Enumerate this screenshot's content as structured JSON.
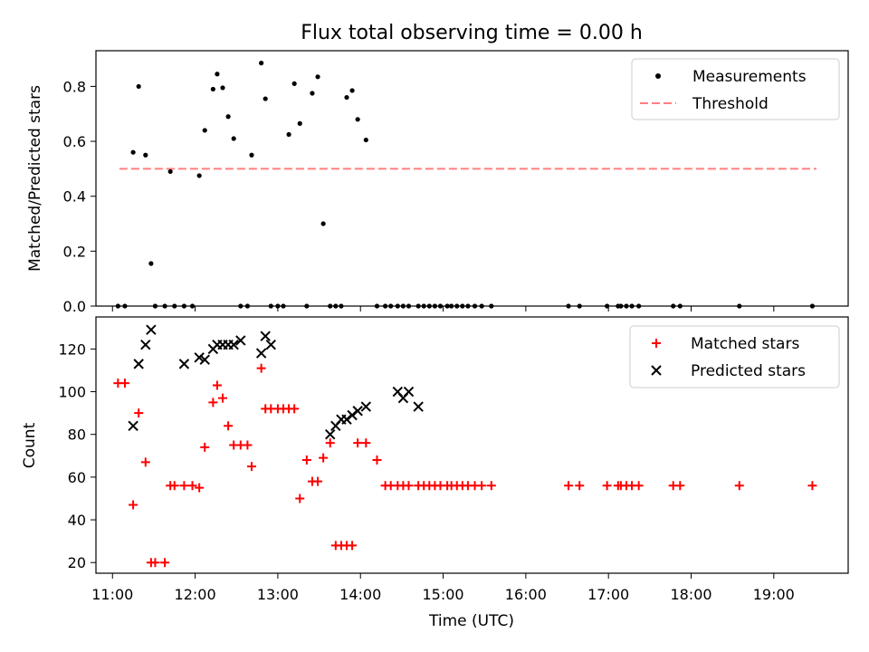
{
  "title": "Flux total observing time = 0.00 h",
  "colors": {
    "measurement": "#000000",
    "threshold": "#ff7f7f",
    "matched": "#ff0000",
    "predicted": "#000000"
  },
  "chart_data": [
    {
      "type": "scatter",
      "ylabel": "Matched/Predicted stars",
      "xlim": [
        "10:48",
        "19:54"
      ],
      "ylim": [
        0,
        0.93
      ],
      "yticks": [
        "0.0",
        "0.2",
        "0.4",
        "0.6",
        "0.8"
      ],
      "grid": false,
      "legend_position": "top-right",
      "legend": [
        "Measurements",
        "Threshold"
      ],
      "threshold": {
        "value": 0.5,
        "x_start": "11:05",
        "x_end": "19:31"
      },
      "series": [
        {
          "name": "Measurements",
          "x": [
            "11:04",
            "11:09",
            "11:15",
            "11:19",
            "11:24",
            "11:28",
            "11:31",
            "11:38",
            "11:42",
            "11:45",
            "11:52",
            "11:58",
            "12:03",
            "12:07",
            "12:13",
            "12:16",
            "12:20",
            "12:24",
            "12:28",
            "12:33",
            "12:38",
            "12:41",
            "12:48",
            "12:51",
            "12:55",
            "13:00",
            "13:04",
            "13:08",
            "13:12",
            "13:16",
            "13:21",
            "13:25",
            "13:29",
            "13:33",
            "13:38",
            "13:42",
            "13:46",
            "13:50",
            "13:54",
            "13:58",
            "14:04",
            "14:12",
            "14:18",
            "14:22",
            "14:27",
            "14:31",
            "14:35",
            "14:42",
            "14:46",
            "14:50",
            "14:54",
            "14:58",
            "15:03",
            "15:06",
            "15:10",
            "15:14",
            "15:18",
            "15:23",
            "15:28",
            "15:35",
            "16:31",
            "16:39",
            "16:59",
            "17:07",
            "17:09",
            "17:13",
            "17:17",
            "17:22",
            "17:47",
            "17:52",
            "18:35",
            "19:28"
          ],
          "y": [
            0,
            0,
            0.56,
            0.8,
            0.55,
            0.155,
            0,
            0,
            0.49,
            0,
            0,
            0,
            0.475,
            0.64,
            0.79,
            0.845,
            0.795,
            0.69,
            0.61,
            0,
            0,
            0.55,
            0.885,
            0.755,
            0,
            0,
            0,
            0.625,
            0.81,
            0.665,
            0,
            0.775,
            0.835,
            0.3,
            0,
            0,
            0,
            0.76,
            0.785,
            0.68,
            0.605,
            0,
            0,
            0,
            0,
            0,
            0,
            0,
            0,
            0,
            0,
            0,
            0,
            0,
            0,
            0,
            0,
            0,
            0,
            0,
            0,
            0,
            0,
            0,
            0,
            0,
            0,
            0,
            0,
            0,
            0,
            0
          ]
        }
      ]
    },
    {
      "type": "scatter",
      "xlabel": "Time (UTC)",
      "ylabel": "Count",
      "xlim": [
        "10:48",
        "19:54"
      ],
      "ylim": [
        15,
        135
      ],
      "yticks": [
        "20",
        "40",
        "60",
        "80",
        "100",
        "120"
      ],
      "xticks": [
        "11:00",
        "12:00",
        "13:00",
        "14:00",
        "15:00",
        "16:00",
        "17:00",
        "18:00",
        "19:00"
      ],
      "grid": false,
      "legend_position": "top-right",
      "legend": [
        "Matched stars",
        "Predicted stars"
      ],
      "series": [
        {
          "name": "Matched stars",
          "x": [
            "11:04",
            "11:09",
            "11:15",
            "11:19",
            "11:24",
            "11:28",
            "11:31",
            "11:38",
            "11:42",
            "11:45",
            "11:52",
            "11:58",
            "12:03",
            "12:07",
            "12:13",
            "12:16",
            "12:20",
            "12:24",
            "12:28",
            "12:33",
            "12:38",
            "12:41",
            "12:48",
            "12:51",
            "12:55",
            "13:00",
            "13:04",
            "13:08",
            "13:12",
            "13:16",
            "13:21",
            "13:25",
            "13:29",
            "13:33",
            "13:38",
            "13:42",
            "13:46",
            "13:50",
            "13:54",
            "13:58",
            "14:04",
            "14:12",
            "14:18",
            "14:22",
            "14:27",
            "14:31",
            "14:35",
            "14:42",
            "14:46",
            "14:50",
            "14:54",
            "14:58",
            "15:03",
            "15:06",
            "15:10",
            "15:14",
            "15:18",
            "15:23",
            "15:28",
            "15:35",
            "16:31",
            "16:39",
            "16:59",
            "17:07",
            "17:09",
            "17:13",
            "17:17",
            "17:22",
            "17:47",
            "17:52",
            "18:35",
            "19:28"
          ],
          "y": [
            104,
            104,
            47,
            90,
            67,
            20,
            20,
            20,
            56,
            56,
            56,
            56,
            55,
            74,
            95,
            103,
            97,
            84,
            75,
            75,
            75,
            65,
            111,
            92,
            92,
            92,
            92,
            92,
            92,
            50,
            68,
            58,
            58,
            69,
            76,
            28,
            28,
            28,
            28,
            76,
            76,
            68,
            56,
            56,
            56,
            56,
            56,
            56,
            56,
            56,
            56,
            56,
            56,
            56,
            56,
            56,
            56,
            56,
            56,
            56,
            56,
            56,
            56,
            56,
            56,
            56,
            56,
            56,
            56,
            56,
            56,
            56
          ]
        },
        {
          "name": "Predicted stars",
          "x": [
            "11:15",
            "11:19",
            "11:24",
            "11:28",
            "11:52",
            "12:03",
            "12:07",
            "12:13",
            "12:16",
            "12:20",
            "12:24",
            "12:28",
            "12:33",
            "12:48",
            "12:51",
            "12:55",
            "13:38",
            "13:42",
            "13:46",
            "13:50",
            "13:54",
            "13:58",
            "14:04",
            "14:27",
            "14:31",
            "14:35",
            "14:42"
          ],
          "y": [
            84,
            113,
            122,
            129,
            113,
            116,
            115,
            120,
            122,
            122,
            122,
            122,
            124,
            118,
            126,
            122,
            80,
            84,
            87,
            87,
            89,
            91,
            93,
            100,
            97,
            100,
            93
          ]
        }
      ]
    }
  ]
}
